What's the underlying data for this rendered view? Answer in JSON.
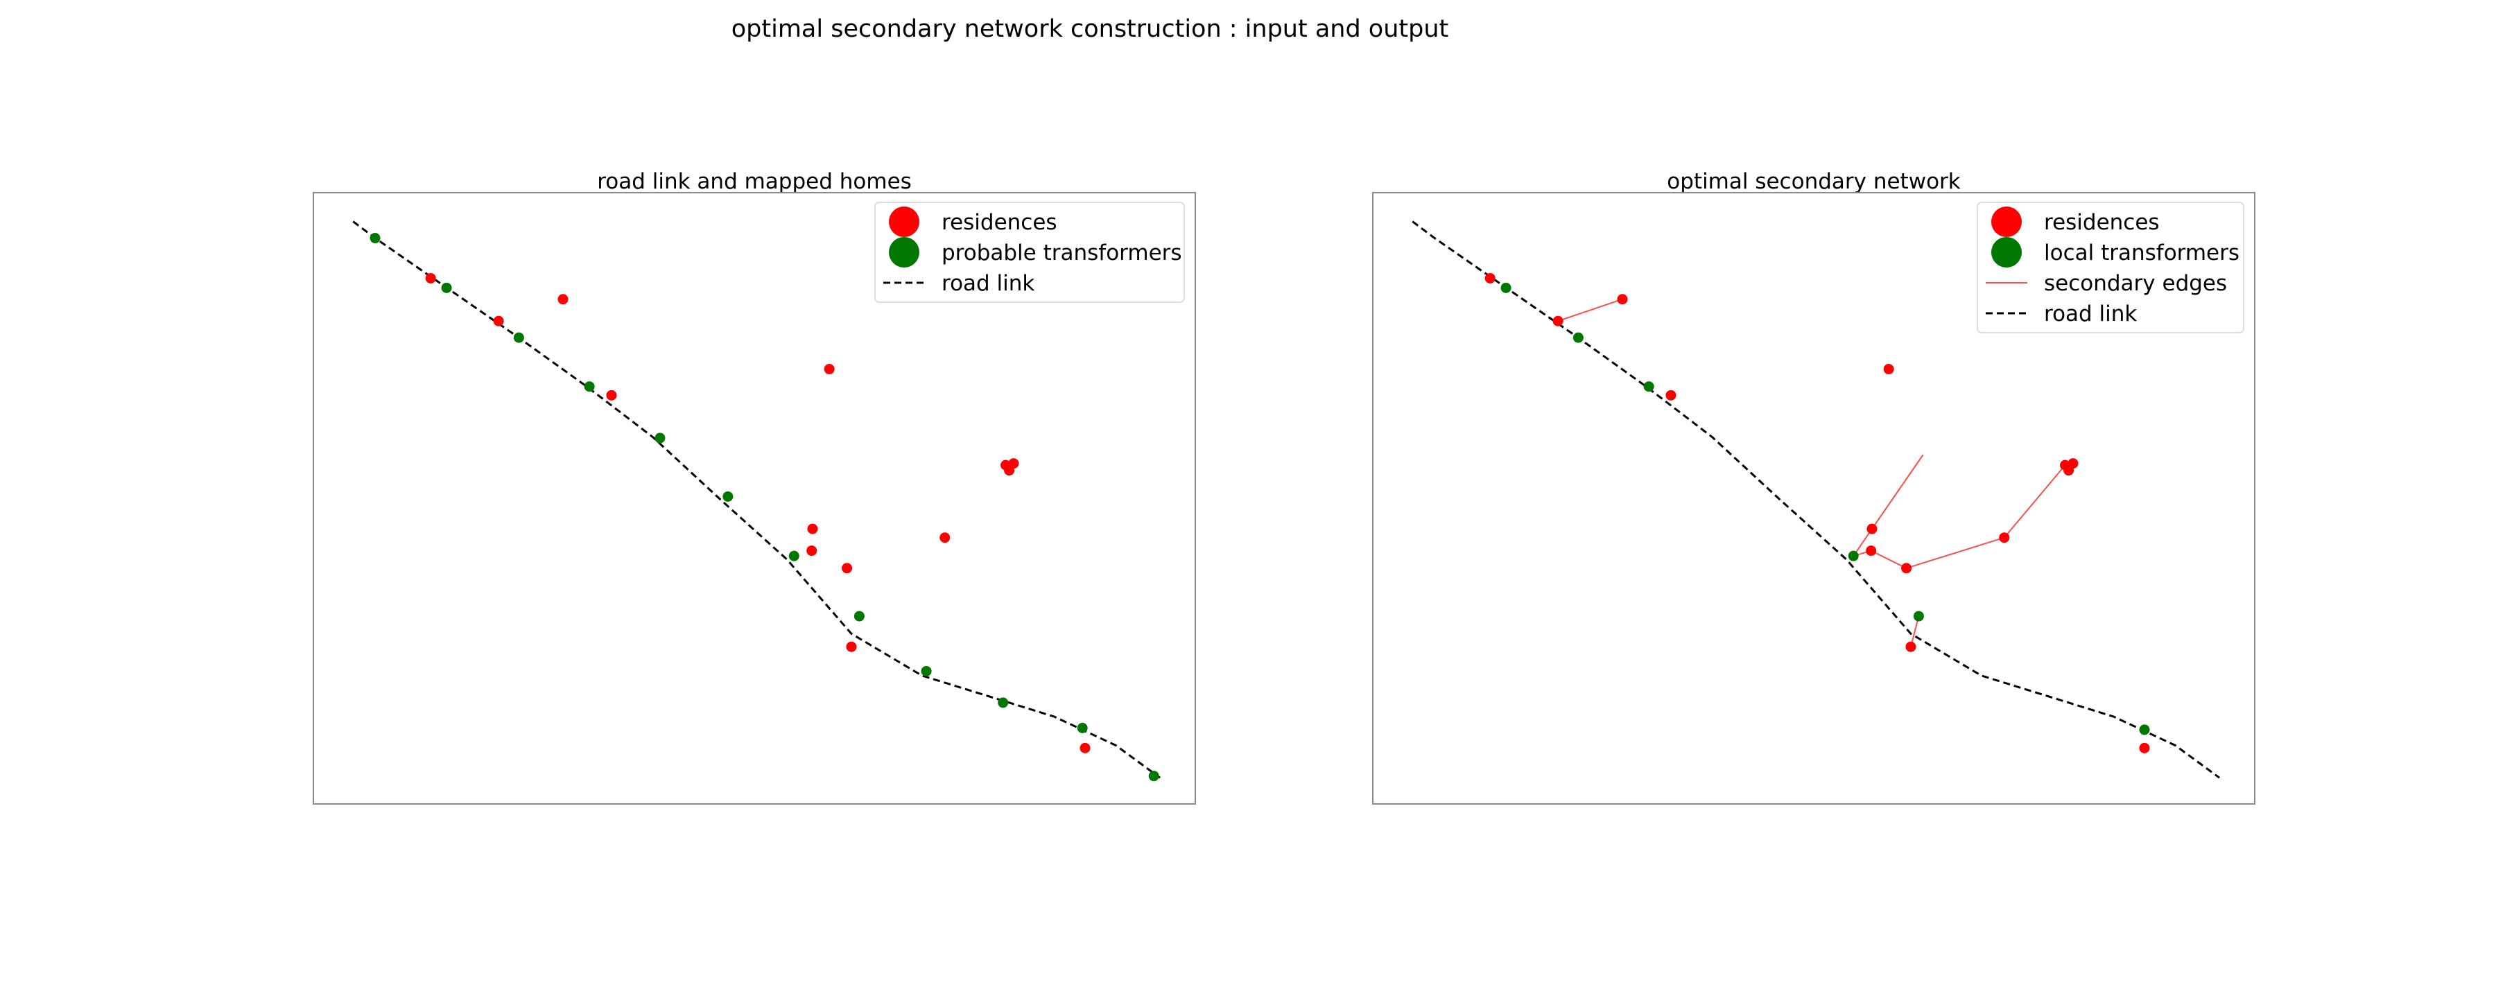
{
  "figure": {
    "title": "optimal secondary network construction : input and output",
    "colors": {
      "residence": "#ff0000",
      "transformer": "#007700",
      "road": "#000000",
      "edge": "#ff4d4d"
    }
  },
  "chart_data": [
    {
      "type": "scatter",
      "title": "road link and mapped homes",
      "xlabel": "",
      "ylabel": "",
      "axes_visible": false,
      "grid": false,
      "xlim": [
        0,
        1000
      ],
      "ylim": [
        0,
        700
      ],
      "legend": {
        "placement": "top-right",
        "entries": [
          {
            "label": "residences",
            "kind": "marker",
            "color": "#ff0000"
          },
          {
            "label": "probable transformers",
            "kind": "marker",
            "color": "#007700"
          },
          {
            "label": "road link",
            "kind": "dashed-line",
            "color": "#000000"
          }
        ]
      },
      "road_link": [
        [
          45,
          667
        ],
        [
          70,
          648
        ],
        [
          150,
          592
        ],
        [
          230,
          536
        ],
        [
          310,
          478
        ],
        [
          385,
          420
        ],
        [
          460,
          350
        ],
        [
          537,
          280
        ],
        [
          610,
          195
        ],
        [
          690,
          147
        ],
        [
          840,
          100
        ],
        [
          910,
          67
        ],
        [
          960,
          30
        ]
      ],
      "residences": [
        [
          133,
          602
        ],
        [
          210,
          553
        ],
        [
          283,
          578
        ],
        [
          338,
          468
        ],
        [
          585,
          498
        ],
        [
          565,
          290
        ],
        [
          566,
          315
        ],
        [
          605,
          270
        ],
        [
          610,
          180
        ],
        [
          716,
          305
        ],
        [
          785,
          388
        ],
        [
          794,
          390
        ],
        [
          789,
          382
        ],
        [
          875,
          64
        ]
      ],
      "transformers": [
        [
          70,
          648
        ],
        [
          151,
          591
        ],
        [
          233,
          534
        ],
        [
          313,
          478
        ],
        [
          393,
          419
        ],
        [
          470,
          352
        ],
        [
          545,
          284
        ],
        [
          619,
          215
        ],
        [
          695,
          152
        ],
        [
          782,
          116
        ],
        [
          872,
          87
        ],
        [
          953,
          32
        ]
      ]
    },
    {
      "type": "scatter",
      "title": "optimal secondary network",
      "xlabel": "",
      "ylabel": "",
      "axes_visible": false,
      "grid": false,
      "xlim": [
        0,
        1000
      ],
      "ylim": [
        0,
        700
      ],
      "legend": {
        "placement": "top-right",
        "entries": [
          {
            "label": "residences",
            "kind": "marker",
            "color": "#ff0000"
          },
          {
            "label": "local transformers",
            "kind": "marker",
            "color": "#007700"
          },
          {
            "label": "secondary edges",
            "kind": "thin-line",
            "color": "#ff4d4d"
          },
          {
            "label": "road link",
            "kind": "dashed-line",
            "color": "#000000"
          }
        ]
      },
      "road_link": [
        [
          45,
          667
        ],
        [
          70,
          648
        ],
        [
          150,
          592
        ],
        [
          230,
          536
        ],
        [
          310,
          478
        ],
        [
          385,
          420
        ],
        [
          460,
          350
        ],
        [
          537,
          280
        ],
        [
          610,
          195
        ],
        [
          690,
          147
        ],
        [
          840,
          100
        ],
        [
          910,
          67
        ],
        [
          960,
          30
        ]
      ],
      "residences": [
        [
          133,
          602
        ],
        [
          210,
          553
        ],
        [
          283,
          578
        ],
        [
          338,
          468
        ],
        [
          585,
          498
        ],
        [
          565,
          290
        ],
        [
          566,
          315
        ],
        [
          605,
          270
        ],
        [
          610,
          180
        ],
        [
          716,
          305
        ],
        [
          785,
          388
        ],
        [
          794,
          390
        ],
        [
          789,
          382
        ],
        [
          875,
          64
        ]
      ],
      "transformers": [
        [
          151,
          591
        ],
        [
          233,
          534
        ],
        [
          313,
          478
        ],
        [
          545,
          284
        ],
        [
          619,
          215
        ],
        [
          875,
          85
        ]
      ],
      "secondary_edges": [
        [
          [
            210,
            553
          ],
          [
            283,
            578
          ]
        ],
        [
          [
            545,
            284
          ],
          [
            566,
            315
          ]
        ],
        [
          [
            566,
            315
          ],
          [
            624,
            400
          ]
        ],
        [
          [
            545,
            284
          ],
          [
            565,
            290
          ]
        ],
        [
          [
            565,
            290
          ],
          [
            605,
            270
          ]
        ],
        [
          [
            605,
            270
          ],
          [
            716,
            305
          ]
        ],
        [
          [
            716,
            305
          ],
          [
            785,
            388
          ]
        ],
        [
          [
            785,
            388
          ],
          [
            794,
            390
          ]
        ],
        [
          [
            619,
            215
          ],
          [
            610,
            180
          ]
        ]
      ]
    }
  ]
}
